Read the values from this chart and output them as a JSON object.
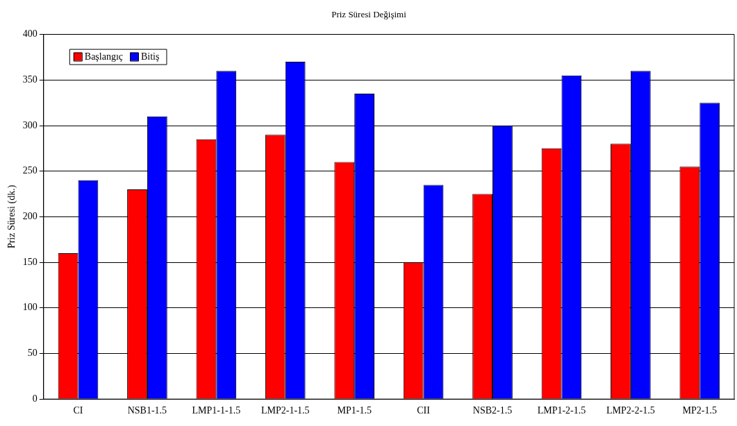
{
  "chart_data": {
    "type": "bar",
    "title": "Priz Süresi Değişimi",
    "ylabel": "Priz Süresi (dk.)",
    "categories": [
      "CI",
      "NSB1-1.5",
      "LMP1-1-1.5",
      "LMP2-1-1.5",
      "MP1-1.5",
      "CII",
      "NSB2-1.5",
      "LMP1-2-1.5",
      "LMP2-2-1.5",
      "MP2-1.5"
    ],
    "series": [
      {
        "name": "Başlangıç",
        "color": "#ff0000",
        "values": [
          160,
          230,
          285,
          290,
          260,
          150,
          225,
          275,
          280,
          255
        ]
      },
      {
        "name": "Bitiş",
        "color": "#0000ff",
        "values": [
          240,
          310,
          360,
          370,
          335,
          235,
          300,
          355,
          360,
          325
        ]
      }
    ],
    "ylim": [
      0,
      400
    ],
    "yticks": [
      0,
      50,
      100,
      150,
      200,
      250,
      300,
      350,
      400
    ],
    "grid": "y",
    "legend": "top left"
  }
}
